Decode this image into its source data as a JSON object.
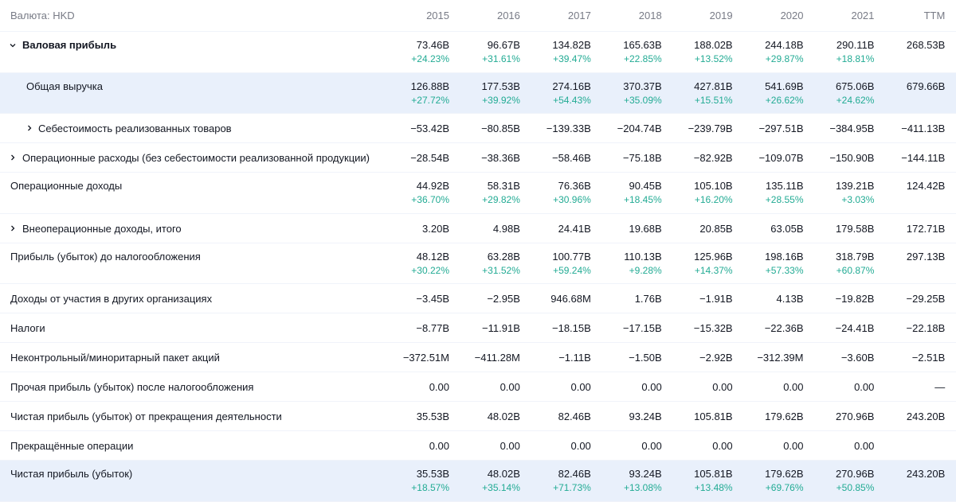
{
  "header": {
    "currency": "Валюта: HKD",
    "columns": [
      "2015",
      "2016",
      "2017",
      "2018",
      "2019",
      "2020",
      "2021",
      "TTM"
    ]
  },
  "table": {
    "rows": [
      {
        "label": "Валовая прибыль",
        "toggle": "expanded",
        "indent": 0,
        "bold": true,
        "values": [
          "73.46B",
          "96.67B",
          "134.82B",
          "165.63B",
          "188.02B",
          "244.18B",
          "290.11B",
          "268.53B"
        ],
        "changes": [
          "+24.23%",
          "+31.61%",
          "+39.47%",
          "+22.85%",
          "+13.52%",
          "+29.87%",
          "+18.81%"
        ]
      },
      {
        "label": "Общая выручка",
        "indent": 1,
        "highlight": true,
        "values": [
          "126.88B",
          "177.53B",
          "274.16B",
          "370.37B",
          "427.81B",
          "541.69B",
          "675.06B",
          "679.66B"
        ],
        "changes": [
          "+27.72%",
          "+39.92%",
          "+54.43%",
          "+35.09%",
          "+15.51%",
          "+26.62%",
          "+24.62%"
        ]
      },
      {
        "label": "Себестоимость реализованных товаров",
        "toggle": "collapsed",
        "indent": 1,
        "values": [
          "−53.42B",
          "−80.85B",
          "−139.33B",
          "−204.74B",
          "−239.79B",
          "−297.51B",
          "−384.95B",
          "−411.13B"
        ]
      },
      {
        "label": "Операционные расходы (без себестоимости реализованной продукции)",
        "toggle": "collapsed",
        "indent": 0,
        "values": [
          "−28.54B",
          "−38.36B",
          "−58.46B",
          "−75.18B",
          "−82.92B",
          "−109.07B",
          "−150.90B",
          "−144.11B"
        ]
      },
      {
        "label": "Операционные доходы",
        "indent": 0,
        "values": [
          "44.92B",
          "58.31B",
          "76.36B",
          "90.45B",
          "105.10B",
          "135.11B",
          "139.21B",
          "124.42B"
        ],
        "changes": [
          "+36.70%",
          "+29.82%",
          "+30.96%",
          "+18.45%",
          "+16.20%",
          "+28.55%",
          "+3.03%"
        ]
      },
      {
        "label": "Внеоперационные доходы, итого",
        "toggle": "collapsed",
        "indent": 0,
        "values": [
          "3.20B",
          "4.98B",
          "24.41B",
          "19.68B",
          "20.85B",
          "63.05B",
          "179.58B",
          "172.71B"
        ]
      },
      {
        "label": "Прибыль (убыток) до налогообложения",
        "indent": 0,
        "values": [
          "48.12B",
          "63.28B",
          "100.77B",
          "110.13B",
          "125.96B",
          "198.16B",
          "318.79B",
          "297.13B"
        ],
        "changes": [
          "+30.22%",
          "+31.52%",
          "+59.24%",
          "+9.28%",
          "+14.37%",
          "+57.33%",
          "+60.87%"
        ]
      },
      {
        "label": "Доходы от участия в других организациях",
        "indent": 0,
        "values": [
          "−3.45B",
          "−2.95B",
          "946.68M",
          "1.76B",
          "−1.91B",
          "4.13B",
          "−19.82B",
          "−29.25B"
        ]
      },
      {
        "label": "Налоги",
        "indent": 0,
        "values": [
          "−8.77B",
          "−11.91B",
          "−18.15B",
          "−17.15B",
          "−15.32B",
          "−22.36B",
          "−24.41B",
          "−22.18B"
        ]
      },
      {
        "label": "Неконтрольный/миноритарный пакет акций",
        "indent": 0,
        "values": [
          "−372.51M",
          "−411.28M",
          "−1.11B",
          "−1.50B",
          "−2.92B",
          "−312.39M",
          "−3.60B",
          "−2.51B"
        ]
      },
      {
        "label": "Прочая прибыль (убыток) после налогообложения",
        "indent": 0,
        "values": [
          "0.00",
          "0.00",
          "0.00",
          "0.00",
          "0.00",
          "0.00",
          "0.00",
          "—"
        ]
      },
      {
        "label": "Чистая прибыль (убыток) от прекращения деятельности",
        "indent": 0,
        "values": [
          "35.53B",
          "48.02B",
          "82.46B",
          "93.24B",
          "105.81B",
          "179.62B",
          "270.96B",
          "243.20B"
        ]
      },
      {
        "label": "Прекращённые операции",
        "indent": 0,
        "values": [
          "0.00",
          "0.00",
          "0.00",
          "0.00",
          "0.00",
          "0.00",
          "0.00",
          null
        ]
      },
      {
        "label": "Чистая прибыль (убыток)",
        "indent": 0,
        "highlight": true,
        "values": [
          "35.53B",
          "48.02B",
          "82.46B",
          "93.24B",
          "105.81B",
          "179.62B",
          "270.96B",
          "243.20B"
        ],
        "changes": [
          "+18.57%",
          "+35.14%",
          "+71.73%",
          "+13.08%",
          "+13.48%",
          "+69.76%",
          "+50.85%"
        ]
      }
    ]
  }
}
